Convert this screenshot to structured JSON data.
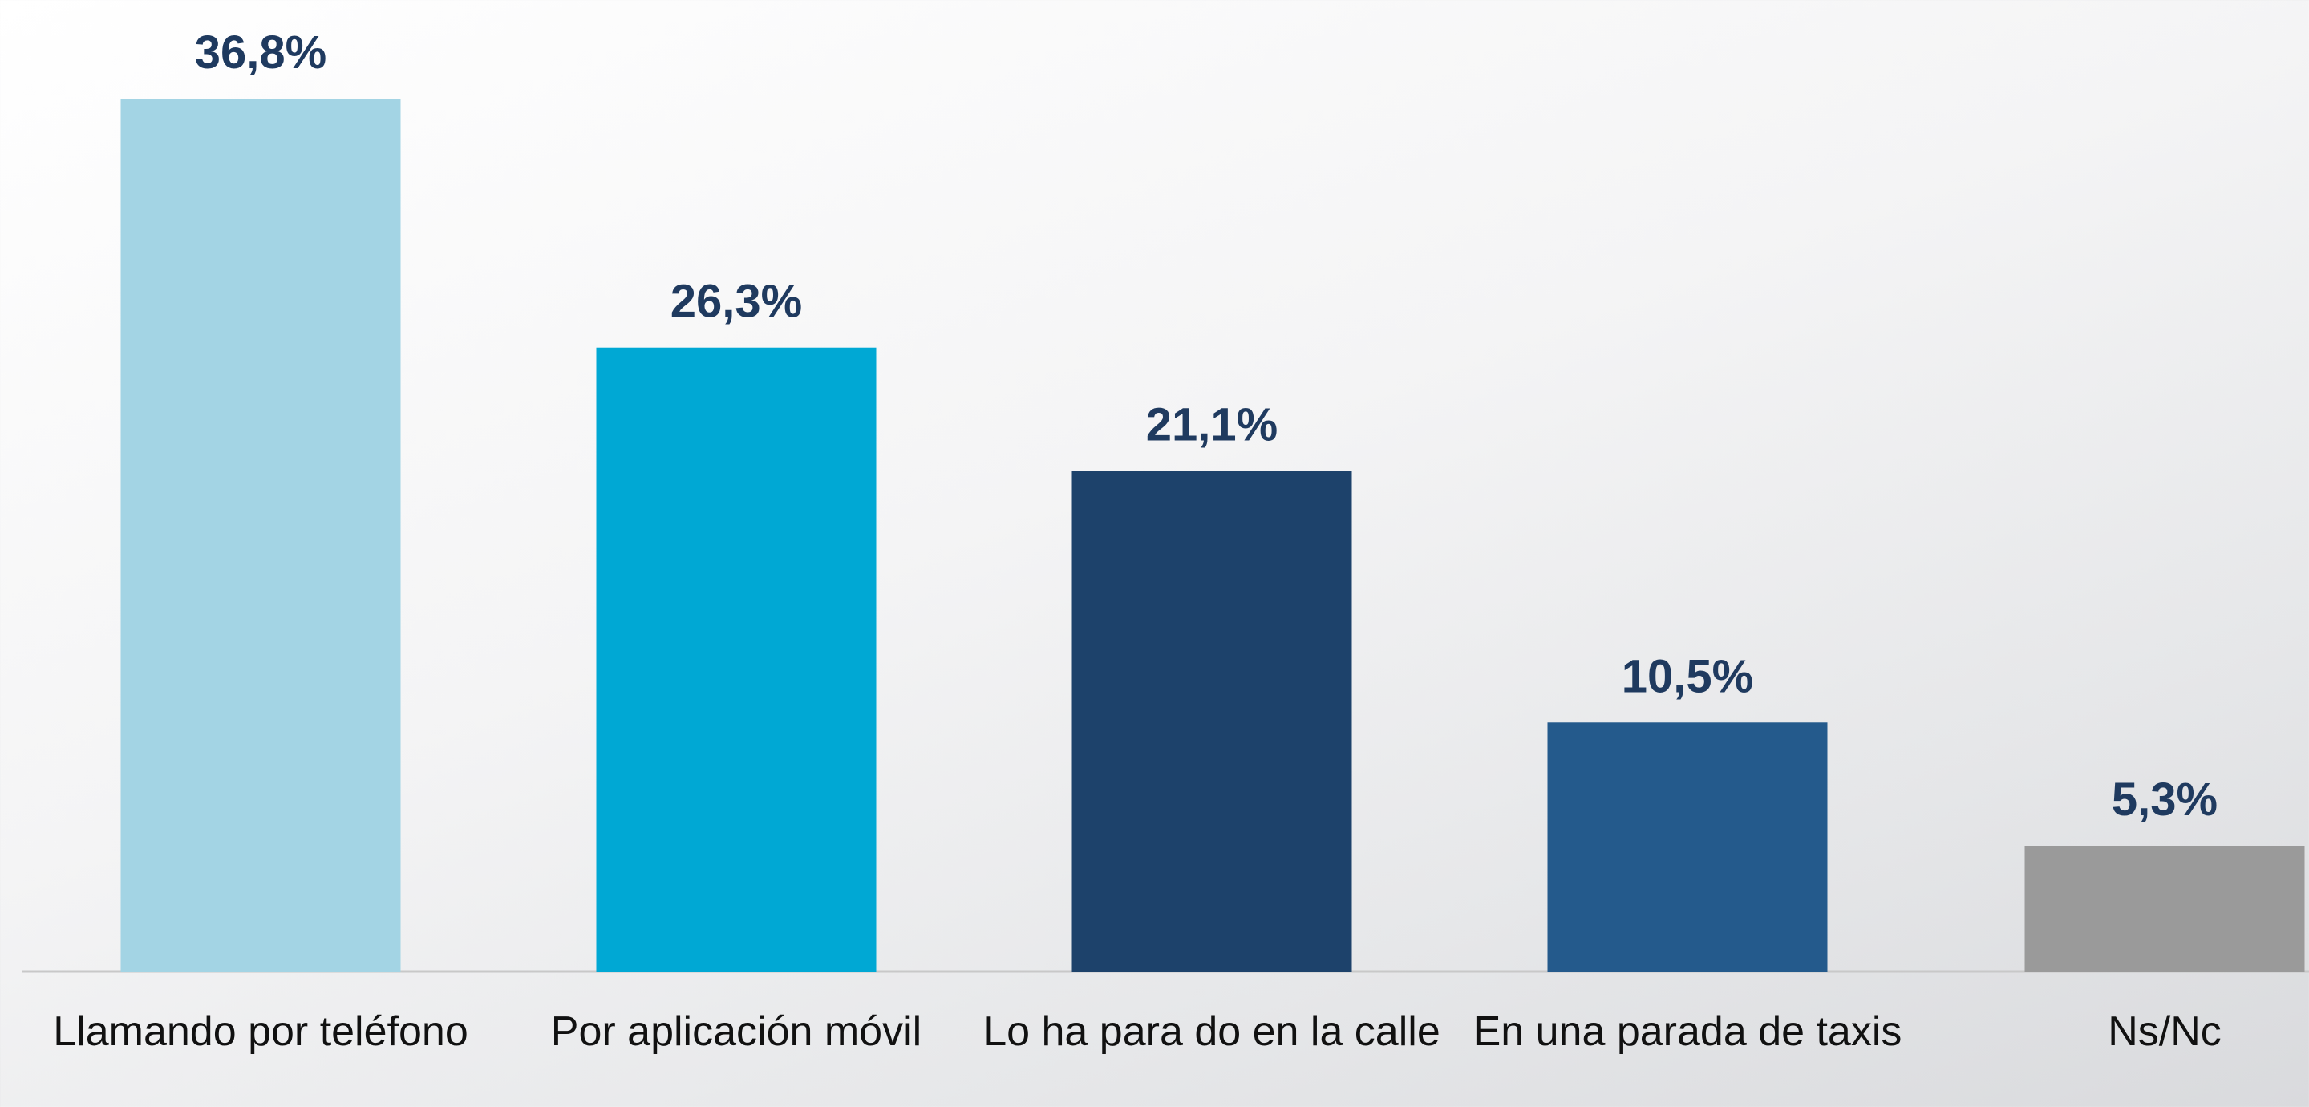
{
  "chart_data": {
    "type": "bar",
    "categories": [
      "Llamando por teléfono",
      "Por aplicación móvil",
      "Lo ha para do en la calle",
      "En una parada de taxis",
      "Ns/Nc"
    ],
    "values": [
      36.8,
      26.3,
      21.1,
      10.5,
      5.3
    ],
    "value_labels": [
      "36,8%",
      "26,3%",
      "21,1%",
      "10,5%",
      "5,3%"
    ],
    "colors": [
      "#a3d4e4",
      "#00a8d4",
      "#1d426b",
      "#245a8c",
      "#9a9a9a"
    ],
    "grid": false
  }
}
